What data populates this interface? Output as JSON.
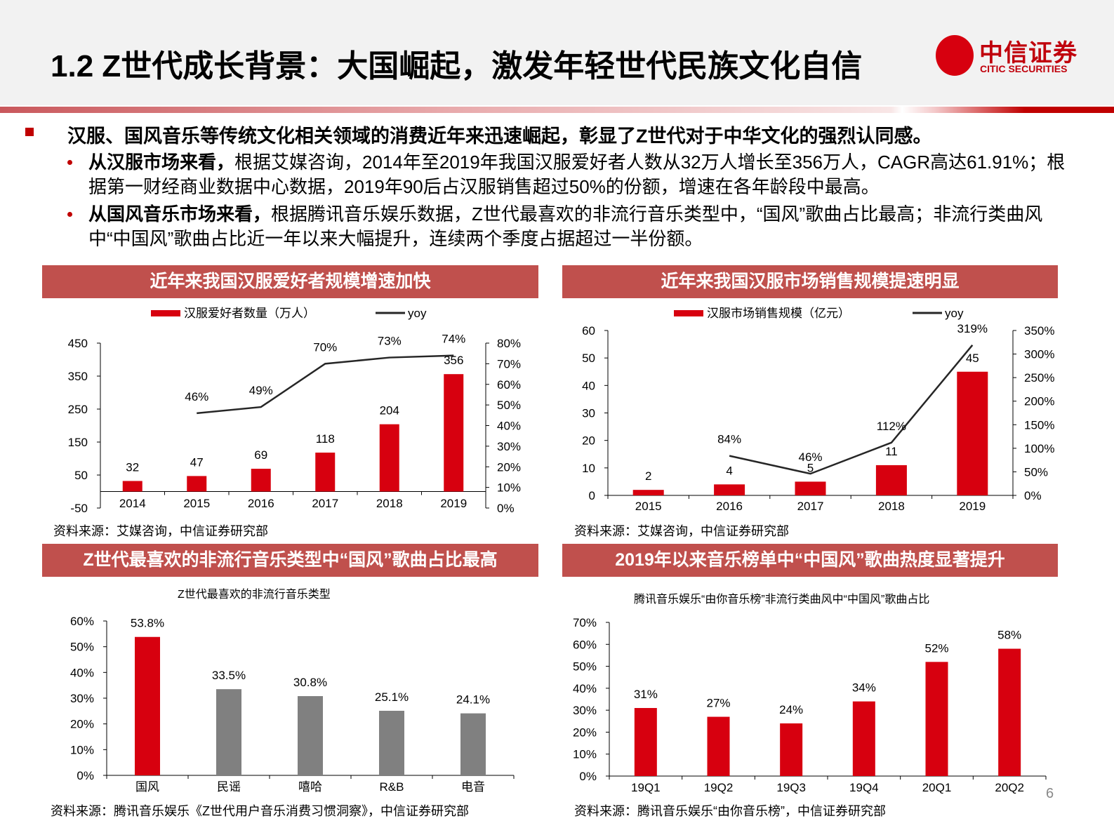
{
  "header": {
    "title": "1.2 Z世代成长背景：大国崛起，激发年轻世代民族文化自信",
    "logo_cn": "中信证券",
    "logo_en": "CITIC SECURITIES"
  },
  "colors": {
    "accent": "#d7000f",
    "section": "#c0504d",
    "gray_bar": "#808080",
    "line": "#262626"
  },
  "bullets": {
    "main": "汉服、国风音乐等传统文化相关领域的消费近年来迅速崛起，彰显了Z世代对于中华文化的强烈认同感。",
    "sub": [
      {
        "bold": "从汉服市场来看，",
        "text": "根据艾媒咨询，2014年至2019年我国汉服爱好者人数从32万人增长至356万人，CAGR高达61.91%；根据第一财经商业数据中心数据，2019年90后占汉服销售超过50%的份额，增速在各年龄段中最高。"
      },
      {
        "bold": "从国风音乐市场来看，",
        "text": "根据腾讯音乐娱乐数据，Z世代最喜欢的非流行音乐类型中，“国风”歌曲占比最高；非流行类曲风中“中国风”歌曲占比近一年以来大幅提升，连续两个季度占据超过一半份额。"
      }
    ]
  },
  "page_number": "6",
  "chart_data": [
    {
      "type": "bar",
      "section_title": "近年来我国汉服爱好者规模增速加快",
      "categories": [
        "2014",
        "2015",
        "2016",
        "2017",
        "2018",
        "2019"
      ],
      "series": [
        {
          "name": "汉服爱好者数量（万人）",
          "type": "bar",
          "axis": "left",
          "values": [
            32,
            47,
            69,
            118,
            204,
            356
          ],
          "labels": [
            "32",
            "47",
            "69",
            "118",
            "204",
            "356"
          ]
        },
        {
          "name": "yoy",
          "type": "line",
          "axis": "right",
          "values": [
            null,
            46,
            49,
            70,
            73,
            74
          ],
          "labels": [
            "",
            "46%",
            "49%",
            "70%",
            "73%",
            "74%"
          ]
        }
      ],
      "ylim": [
        -50,
        450
      ],
      "yticks": [
        "450",
        "350",
        "250",
        "150",
        "50",
        "-50"
      ],
      "y2lim": [
        0,
        80
      ],
      "y2ticks": [
        "80%",
        "70%",
        "60%",
        "50%",
        "40%",
        "30%",
        "20%",
        "10%",
        "0%"
      ],
      "legend": "top",
      "source": "资料来源：艾媒咨询，中信证券研究部"
    },
    {
      "type": "bar",
      "section_title": "近年来我国汉服市场销售规模提速明显",
      "categories": [
        "2015",
        "2016",
        "2017",
        "2018",
        "2019"
      ],
      "series": [
        {
          "name": "汉服市场销售规模（亿元）",
          "type": "bar",
          "axis": "left",
          "values": [
            2,
            4,
            5,
            11,
            45
          ],
          "labels": [
            "2",
            "4",
            "5",
            "11",
            "45"
          ]
        },
        {
          "name": "yoy",
          "type": "line",
          "axis": "right",
          "values": [
            null,
            84,
            46,
            112,
            319
          ],
          "labels": [
            "",
            "84%",
            "46%",
            "112%",
            "319%"
          ]
        }
      ],
      "ylim": [
        0,
        60
      ],
      "yticks": [
        "60",
        "50",
        "40",
        "30",
        "20",
        "10",
        "0"
      ],
      "y2lim": [
        0,
        350
      ],
      "y2ticks": [
        "350%",
        "300%",
        "250%",
        "200%",
        "150%",
        "100%",
        "50%",
        "0%"
      ],
      "legend": "top",
      "source": "资料来源：艾媒咨询，中信证券研究部"
    },
    {
      "type": "bar",
      "section_title": "Z世代最喜欢的非流行音乐类型中“国风”歌曲占比最高",
      "title": "Z世代最喜欢的非流行音乐类型",
      "categories": [
        "国风",
        "民谣",
        "嘻哈",
        "R&B",
        "电音"
      ],
      "values": [
        53.8,
        33.5,
        30.8,
        25.1,
        24.1
      ],
      "labels": [
        "53.8%",
        "33.5%",
        "30.8%",
        "25.1%",
        "24.1%"
      ],
      "bar_colors": [
        "#d7000f",
        "#808080",
        "#808080",
        "#808080",
        "#808080"
      ],
      "ylim": [
        0,
        60
      ],
      "yticks": [
        "60%",
        "50%",
        "40%",
        "30%",
        "20%",
        "10%",
        "0%"
      ],
      "source": "资料来源：腾讯音乐娱乐《Z世代用户音乐消费习惯洞察》，中信证券研究部"
    },
    {
      "type": "bar",
      "section_title": "2019年以来音乐榜单中“中国风”歌曲热度显著提升",
      "title": "腾讯音乐娱乐“由你音乐榜”非流行类曲风中“中国风”歌曲占比",
      "categories": [
        "19Q1",
        "19Q2",
        "19Q3",
        "19Q4",
        "20Q1",
        "20Q2"
      ],
      "values": [
        31,
        27,
        24,
        34,
        52,
        58
      ],
      "labels": [
        "31%",
        "27%",
        "24%",
        "34%",
        "52%",
        "58%"
      ],
      "ylim": [
        0,
        70
      ],
      "yticks": [
        "70%",
        "60%",
        "50%",
        "40%",
        "30%",
        "20%",
        "10%",
        "0%"
      ],
      "source": "资料来源：腾讯音乐娱乐“由你音乐榜”，中信证券研究部"
    }
  ]
}
